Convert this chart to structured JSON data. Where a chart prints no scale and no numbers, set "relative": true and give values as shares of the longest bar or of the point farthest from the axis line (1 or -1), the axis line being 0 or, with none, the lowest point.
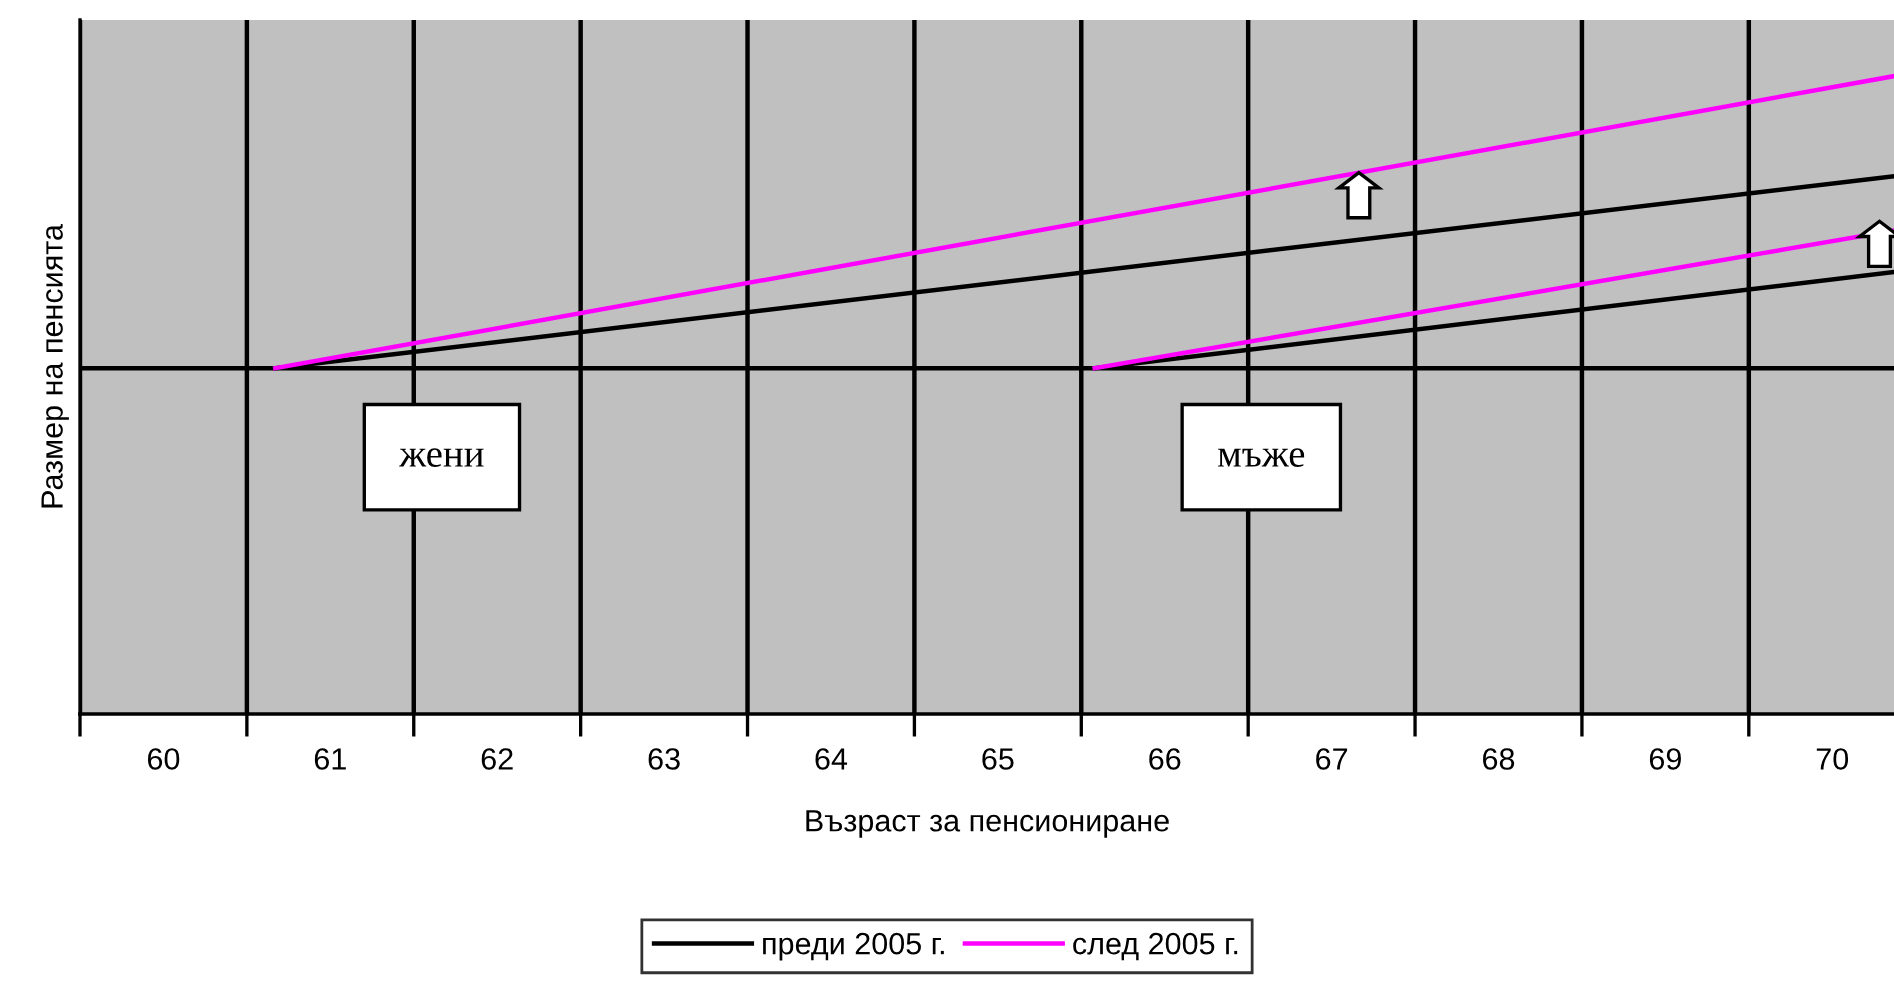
{
  "chart_data": {
    "type": "line",
    "relative": true,
    "xlabel": "Възраст за пенсиониране",
    "ylabel": "Размер на пенсията",
    "xlim": [
      59.5,
      70.37
    ],
    "xticks": [
      {
        "value": 59.5,
        "label": null
      },
      60,
      {
        "value": 60.5,
        "label": null
      },
      61,
      {
        "value": 61.5,
        "label": null
      },
      62,
      {
        "value": 62.5,
        "label": null
      },
      63,
      {
        "value": 63.5,
        "label": null
      },
      64,
      {
        "value": 64.5,
        "label": null
      },
      65,
      {
        "value": 65.5,
        "label": null
      },
      66,
      {
        "value": 66.5,
        "label": null
      },
      67,
      {
        "value": 67.5,
        "label": null
      },
      68,
      {
        "value": 68.5,
        "label": null
      },
      69,
      {
        "value": 69.5,
        "label": null
      },
      70
    ],
    "grid": "x",
    "legend": "bottom",
    "marker": "none",
    "line_style": "solid",
    "ref_lines": [
      {
        "axis": "y",
        "value": 0.542,
        "color": "#000000"
      }
    ],
    "annotations": [
      "жени",
      "мъже"
    ],
    "series": [
      {
        "name": "преди 2005 г.",
        "color": "#000000",
        "x": [
          60.67,
          70.37
        ],
        "values": [
          0.542,
          0.843
        ]
      },
      {
        "name": "след 2005 г.",
        "color": "#ff00ff",
        "x": [
          60.67,
          70.37
        ],
        "values": [
          0.542,
          1.0
        ]
      },
      {
        "color": "#000000",
        "x": [
          65.58,
          70.37
        ],
        "values": [
          0.542,
          0.693
        ]
      },
      {
        "color": "#ff00ff",
        "x": [
          65.58,
          70.37
        ],
        "values": [
          0.542,
          0.758
        ]
      }
    ]
  }
}
